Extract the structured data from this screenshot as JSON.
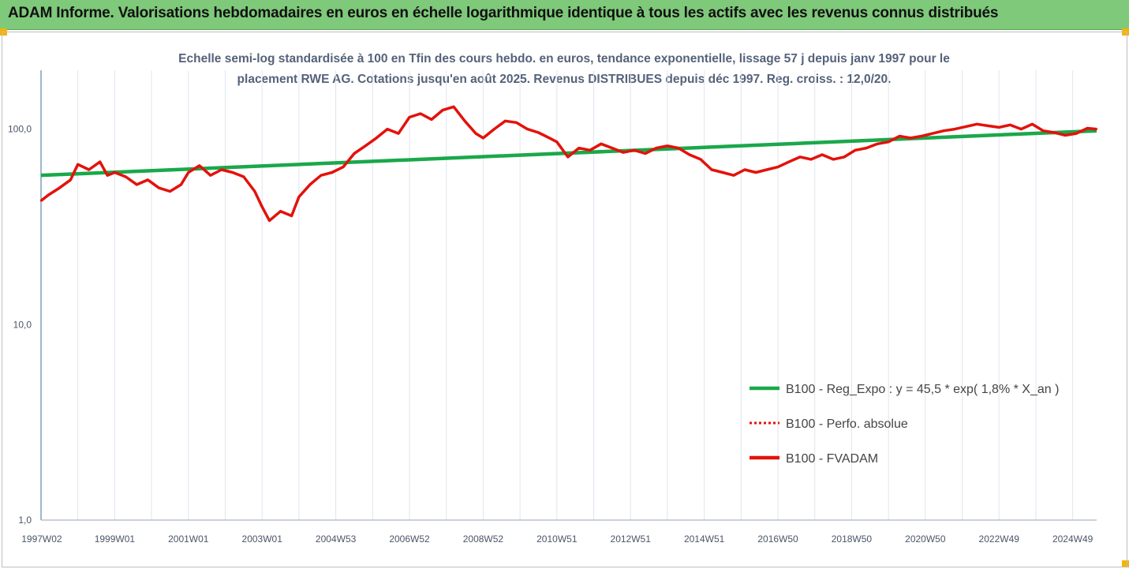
{
  "header": {
    "title": "ADAM Informe. Valorisations hebdomadaires en euros en échelle logarithmique identique à tous les actifs avec les revenus connus distribués"
  },
  "chart_data": {
    "type": "line",
    "title": "",
    "subtitle_line1": "Echelle semi-log standardisée à 100 en Tfin des cours hebdo. en euros, tendance exponentielle, lissage 57 j depuis janv 1997 pour le",
    "subtitle_line2": "placement RWE AG. Cotations jusqu'en août 2025. Revenus DISTRIBUES depuis déc 1997. Reg. croiss. : 12,0/20.",
    "xlabel": "",
    "ylabel": "",
    "y_scale": "log",
    "ylim": [
      1,
      200
    ],
    "y_ticks": [
      1,
      10,
      100
    ],
    "y_tick_labels": [
      "1,0",
      "10,0",
      "100,0"
    ],
    "x_range_years": [
      1997.0,
      2025.65
    ],
    "x_tick_labels": [
      "1997W02",
      "1999W01",
      "2001W01",
      "2003W01",
      "2004W53",
      "2006W52",
      "2008W52",
      "2010W51",
      "2012W51",
      "2014W51",
      "2016W50",
      "2018W50",
      "2020W50",
      "2022W49",
      "2024W49"
    ],
    "x_tick_years": [
      1997.02,
      1999.0,
      2001.0,
      2003.0,
      2005.0,
      2007.0,
      2009.0,
      2011.0,
      2013.0,
      2015.0,
      2017.0,
      2019.0,
      2021.0,
      2023.0,
      2025.0
    ],
    "grid": "vertical lines at each year",
    "legend_position": "bottom-right",
    "legend": [
      {
        "label": "B100 - Reg_Expo : y = 45,5 * exp( 1,8% *  X_an )",
        "style": "solid",
        "color": "#1aa84a"
      },
      {
        "label": "B100 - Perfo. absolue",
        "style": "dotted",
        "color": "#e3120b"
      },
      {
        "label": "B100 - FVADAM",
        "style": "solid",
        "color": "#e3120b"
      }
    ],
    "series": [
      {
        "name": "B100 - Reg_Expo : y = 45,5 * exp( 1,8% *  X_an )",
        "type": "regression",
        "color": "#1aa84a",
        "x": [
          1997.0,
          2025.65
        ],
        "y": [
          58,
          98
        ]
      },
      {
        "name": "B100 - FVADAM",
        "color": "#e3120b",
        "x": [
          1997.0,
          1997.2,
          1997.5,
          1997.8,
          1998.0,
          1998.3,
          1998.6,
          1998.8,
          1999.0,
          1999.3,
          1999.6,
          1999.9,
          2000.2,
          2000.5,
          2000.8,
          2001.0,
          2001.3,
          2001.6,
          2001.9,
          2002.2,
          2002.5,
          2002.8,
          2003.0,
          2003.2,
          2003.5,
          2003.8,
          2004.0,
          2004.3,
          2004.6,
          2004.9,
          2005.2,
          2005.5,
          2005.8,
          2006.1,
          2006.4,
          2006.7,
          2007.0,
          2007.3,
          2007.6,
          2007.9,
          2008.2,
          2008.5,
          2008.8,
          2009.0,
          2009.3,
          2009.6,
          2009.9,
          2010.2,
          2010.5,
          2010.8,
          2011.0,
          2011.3,
          2011.6,
          2011.9,
          2012.2,
          2012.5,
          2012.8,
          2013.1,
          2013.4,
          2013.7,
          2014.0,
          2014.3,
          2014.6,
          2014.9,
          2015.2,
          2015.5,
          2015.8,
          2016.1,
          2016.4,
          2016.7,
          2017.0,
          2017.3,
          2017.6,
          2017.9,
          2018.2,
          2018.5,
          2018.8,
          2019.1,
          2019.4,
          2019.7,
          2020.0,
          2020.3,
          2020.6,
          2020.9,
          2021.2,
          2021.5,
          2021.8,
          2022.1,
          2022.4,
          2022.7,
          2023.0,
          2023.3,
          2023.6,
          2023.9,
          2024.2,
          2024.5,
          2024.8,
          2025.1,
          2025.4,
          2025.65
        ],
        "y": [
          43,
          46,
          50,
          55,
          66,
          62,
          68,
          58,
          60,
          57,
          52,
          55,
          50,
          48,
          52,
          60,
          65,
          58,
          62,
          60,
          57,
          48,
          40,
          34,
          38,
          36,
          45,
          52,
          58,
          60,
          64,
          75,
          82,
          90,
          100,
          95,
          115,
          120,
          112,
          125,
          130,
          110,
          95,
          90,
          100,
          110,
          108,
          100,
          96,
          90,
          86,
          72,
          80,
          78,
          84,
          80,
          76,
          78,
          75,
          80,
          82,
          80,
          74,
          70,
          62,
          60,
          58,
          62,
          60,
          62,
          64,
          68,
          72,
          70,
          74,
          70,
          72,
          78,
          80,
          84,
          86,
          92,
          90,
          92,
          95,
          98,
          100,
          103,
          106,
          104,
          102,
          105,
          100,
          106,
          98,
          96,
          93,
          95,
          101,
          100
        ]
      }
    ]
  }
}
